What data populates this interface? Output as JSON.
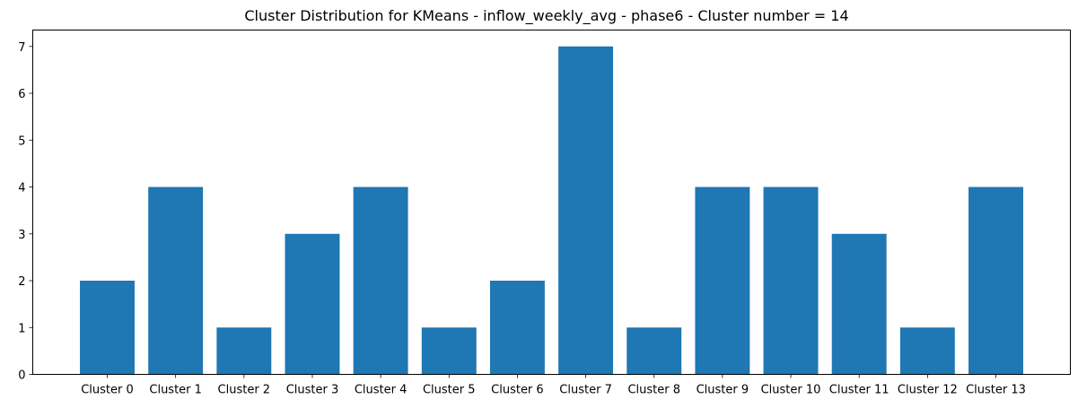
{
  "chart_data": {
    "type": "bar",
    "title": "Cluster Distribution for KMeans - inflow_weekly_avg - phase6 - Cluster number = 14",
    "xlabel": "",
    "ylabel": "",
    "categories": [
      "Cluster 0",
      "Cluster 1",
      "Cluster 2",
      "Cluster 3",
      "Cluster 4",
      "Cluster 5",
      "Cluster 6",
      "Cluster 7",
      "Cluster 8",
      "Cluster 9",
      "Cluster 10",
      "Cluster 11",
      "Cluster 12",
      "Cluster 13"
    ],
    "values": [
      2,
      4,
      1,
      3,
      4,
      1,
      2,
      7,
      1,
      4,
      4,
      3,
      1,
      4
    ],
    "ylim": [
      0,
      7.35
    ],
    "yticks": [
      0,
      1,
      2,
      3,
      4,
      5,
      6,
      7
    ],
    "bar_color": "#1f77b4",
    "grid": false,
    "legend": "none"
  }
}
